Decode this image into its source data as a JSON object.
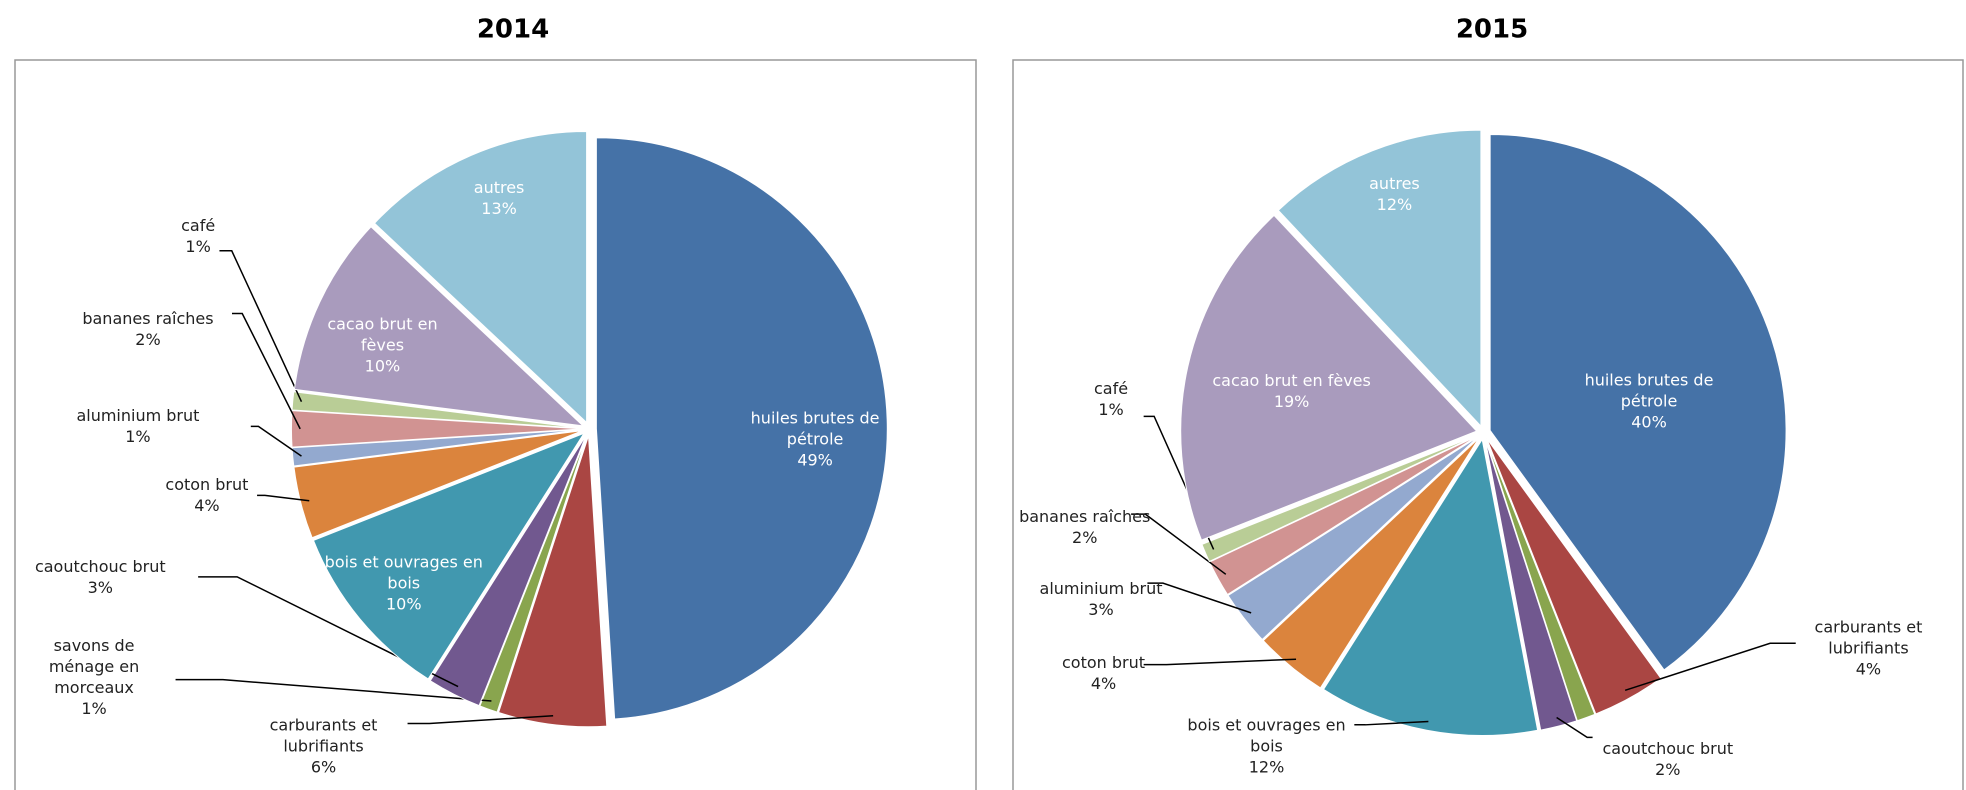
{
  "chart_data": [
    {
      "type": "pie",
      "title": "2014",
      "categories": [
        "huiles brutes de pétrole",
        "carburants et lubrifiants",
        "savons de ménage en morceaux",
        "caoutchouc brut",
        "bois et ouvrages en bois",
        "coton brut",
        "aluminium brut",
        "bananes raîches",
        "café",
        "cacao brut en fèves",
        "autres"
      ],
      "values": [
        49,
        6,
        1,
        3,
        10,
        4,
        1,
        2,
        1,
        10,
        13
      ],
      "value_labels": [
        "49%",
        "6%",
        "1%",
        "3%",
        "10%",
        "4%",
        "1%",
        "2%",
        "1%",
        "10%",
        "13%"
      ],
      "colors": [
        "#4572a7",
        "#aa4643",
        "#89a54e",
        "#71588f",
        "#4198af",
        "#db843d",
        "#93a9cf",
        "#d19392",
        "#b9cd96",
        "#a99bbd",
        "#93c4d8"
      ]
    },
    {
      "type": "pie",
      "title": "2015",
      "categories": [
        "huiles brutes de pétrole",
        "carburants et lubrifiants",
        null,
        "caoutchouc brut",
        "bois et ouvrages en bois",
        "coton brut",
        "aluminium brut",
        "bananes raîches",
        "café",
        "cacao brut en fèves",
        "autres"
      ],
      "values": [
        40,
        4,
        1,
        2,
        12,
        4,
        3,
        2,
        1,
        19,
        12
      ],
      "value_labels": [
        "40%",
        "4%",
        null,
        "2%",
        "12%",
        "4%",
        "3%",
        "2%",
        "1%",
        "19%",
        "12%"
      ],
      "colors": [
        "#4572a7",
        "#aa4643",
        "#89a54e",
        "#71588f",
        "#4198af",
        "#db843d",
        "#93a9cf",
        "#d19392",
        "#b9cd96",
        "#a99bbd",
        "#93c4d8"
      ]
    }
  ]
}
